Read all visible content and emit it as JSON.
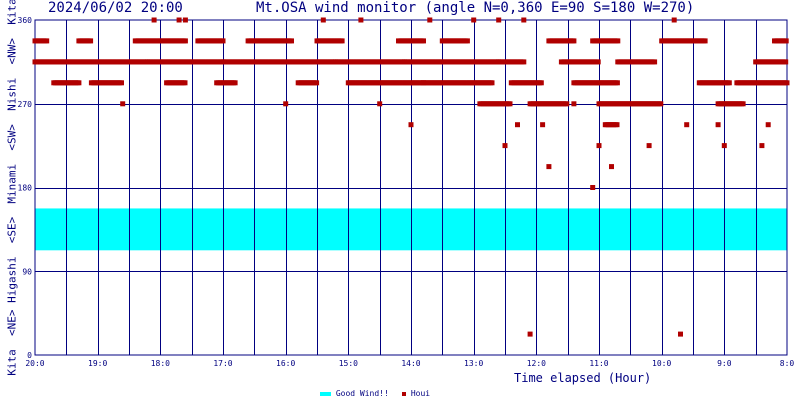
{
  "header": {
    "date": "2024/06/02 20:00",
    "title": "Mt.OSA wind monitor (angle N=0,360 E=90 S=180 W=270)"
  },
  "y_side_label": "Kita  <NE> Higashi  <SE>  Minami  <SW>  Nishi  <NW>  Kita",
  "x_axis_label": "Time elapsed (Hour)",
  "legend": {
    "good_wind": "Good Wind!!",
    "houi": "Houi"
  },
  "colors": {
    "axis": "#000080",
    "grid": "#000080",
    "good_wind": "#00ffff",
    "houi": "#b00000",
    "text": "#000080"
  },
  "chart_data": {
    "type": "scatter",
    "title": "Mt.OSA wind monitor (angle N=0,360 E=90 S=180 W=270)",
    "xlabel": "Time elapsed (Hour)",
    "ylabel": "",
    "x_ticks": [
      "20:0",
      "19:0",
      "18:0",
      "17:0",
      "16:0",
      "15:0",
      "14:0",
      "13:0",
      "12:0",
      "11:0",
      "10:0",
      "9:0",
      "8:0"
    ],
    "xlim_hours_elapsed": [
      0,
      12
    ],
    "x_reversed_clock": true,
    "y_ticks": [
      0,
      90,
      180,
      270,
      360
    ],
    "ylim": [
      0,
      360
    ],
    "grid": true,
    "good_wind_band": {
      "from": 112.5,
      "to": 157.5,
      "name": "Good Wind!!"
    },
    "series": [
      {
        "name": "Houi",
        "runs": [
          {
            "from": 0.0,
            "to": 0.2,
            "angle": 337.5
          },
          {
            "from": 0.0,
            "to": 1.8,
            "angle": 315
          },
          {
            "from": 0.3,
            "to": 0.7,
            "angle": 292.5
          },
          {
            "from": 0.7,
            "to": 0.9,
            "angle": 337.5
          },
          {
            "from": 0.9,
            "to": 1.4,
            "angle": 292.5
          },
          {
            "from": 1.6,
            "to": 2.4,
            "angle": 337.5
          },
          {
            "from": 1.8,
            "to": 3.0,
            "angle": 315
          },
          {
            "from": 2.1,
            "to": 2.4,
            "angle": 292.5
          },
          {
            "from": 2.6,
            "to": 3.0,
            "angle": 337.5
          },
          {
            "from": 2.9,
            "to": 3.2,
            "angle": 292.5
          },
          {
            "from": 3.4,
            "to": 4.1,
            "angle": 337.5
          },
          {
            "from": 3.0,
            "to": 4.8,
            "angle": 315
          },
          {
            "from": 4.2,
            "to": 4.5,
            "angle": 292.5
          },
          {
            "from": 4.5,
            "to": 4.9,
            "angle": 337.5
          },
          {
            "from": 4.8,
            "to": 5.9,
            "angle": 315
          },
          {
            "from": 5.0,
            "to": 6.2,
            "angle": 292.5
          },
          {
            "from": 5.8,
            "to": 6.2,
            "angle": 337.5
          },
          {
            "from": 5.9,
            "to": 7.4,
            "angle": 315
          },
          {
            "from": 6.2,
            "to": 7.3,
            "angle": 292.5
          },
          {
            "from": 6.5,
            "to": 6.9,
            "angle": 337.5
          },
          {
            "from": 7.1,
            "to": 7.6,
            "angle": 270
          },
          {
            "from": 7.4,
            "to": 7.8,
            "angle": 315
          },
          {
            "from": 7.6,
            "to": 8.1,
            "angle": 292.5
          },
          {
            "from": 7.9,
            "to": 8.5,
            "angle": 270
          },
          {
            "from": 8.2,
            "to": 8.6,
            "angle": 337.5
          },
          {
            "from": 8.4,
            "to": 9.0,
            "angle": 315
          },
          {
            "from": 8.6,
            "to": 9.3,
            "angle": 292.5
          },
          {
            "from": 8.9,
            "to": 9.3,
            "angle": 337.5
          },
          {
            "from": 9.1,
            "to": 9.3,
            "angle": 247.5
          },
          {
            "from": 9.0,
            "to": 10.0,
            "angle": 270
          },
          {
            "from": 9.3,
            "to": 9.9,
            "angle": 315
          },
          {
            "from": 10.0,
            "to": 10.7,
            "angle": 337.5
          },
          {
            "from": 10.6,
            "to": 11.1,
            "angle": 292.5
          },
          {
            "from": 10.9,
            "to": 11.3,
            "angle": 270
          },
          {
            "from": 11.2,
            "to": 12.0,
            "angle": 292.5
          },
          {
            "from": 11.5,
            "to": 12.0,
            "angle": 315
          },
          {
            "from": 11.8,
            "to": 12.0,
            "angle": 337.5
          }
        ],
        "points": [
          {
            "x": 1.4,
            "y": 270
          },
          {
            "x": 1.9,
            "y": 360
          },
          {
            "x": 2.3,
            "y": 360
          },
          {
            "x": 2.4,
            "y": 360
          },
          {
            "x": 4.0,
            "y": 270
          },
          {
            "x": 4.6,
            "y": 360
          },
          {
            "x": 5.2,
            "y": 360
          },
          {
            "x": 5.5,
            "y": 270
          },
          {
            "x": 6.0,
            "y": 247.5
          },
          {
            "x": 6.3,
            "y": 360
          },
          {
            "x": 7.0,
            "y": 360
          },
          {
            "x": 7.4,
            "y": 360
          },
          {
            "x": 7.5,
            "y": 225
          },
          {
            "x": 7.7,
            "y": 247.5
          },
          {
            "x": 7.8,
            "y": 360
          },
          {
            "x": 7.9,
            "y": 22.5
          },
          {
            "x": 8.1,
            "y": 247.5
          },
          {
            "x": 8.2,
            "y": 202.5
          },
          {
            "x": 8.6,
            "y": 270
          },
          {
            "x": 8.9,
            "y": 180
          },
          {
            "x": 9.0,
            "y": 225
          },
          {
            "x": 9.2,
            "y": 202.5
          },
          {
            "x": 9.8,
            "y": 225
          },
          {
            "x": 10.2,
            "y": 360
          },
          {
            "x": 10.3,
            "y": 22.5
          },
          {
            "x": 10.4,
            "y": 247.5
          },
          {
            "x": 10.9,
            "y": 247.5
          },
          {
            "x": 11.0,
            "y": 225
          },
          {
            "x": 11.6,
            "y": 225
          },
          {
            "x": 11.7,
            "y": 247.5
          }
        ]
      }
    ]
  }
}
